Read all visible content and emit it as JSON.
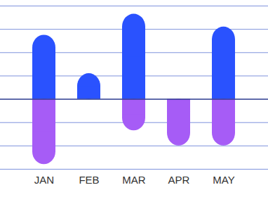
{
  "chart_data": {
    "type": "bar",
    "categories": [
      "JAN",
      "FEB",
      "MAR",
      "APR",
      "MAY"
    ],
    "series": [
      {
        "color": "#2a52fe",
        "values": [
          2.75,
          1.1,
          3.65,
          0,
          3.1
        ]
      },
      {
        "color": "#a65cf6",
        "values": [
          -2.8,
          0,
          -1.35,
          -2.0,
          -2.0
        ]
      }
    ],
    "ylim": [
      -3,
      4
    ],
    "yticks": [
      -3,
      -2,
      -1,
      0,
      1,
      2,
      3,
      4
    ],
    "grid": true,
    "tick_labels": "x"
  }
}
